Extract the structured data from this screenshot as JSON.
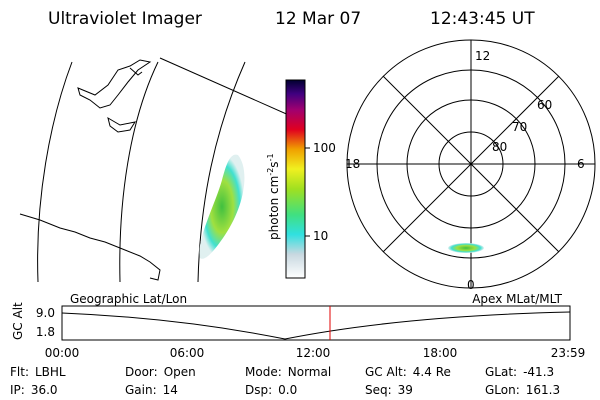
{
  "header": {
    "title": "Ultraviolet Imager",
    "date": "12 Mar 07",
    "time": "12:43:45 UT"
  },
  "colorbar": {
    "label": "photon cm",
    "exp1": "-2",
    "unit2": "s",
    "exp2": "-1",
    "ticks": [
      "100",
      "10"
    ]
  },
  "polar": {
    "mlt_labels": [
      "12",
      "18",
      "6",
      "0"
    ],
    "lat_labels": [
      "60",
      "70",
      "80"
    ]
  },
  "timeline": {
    "left_label": "Geographic Lat/Lon",
    "right_label": "Apex MLat/MLT",
    "y_label": "GC Alt",
    "yticks": [
      "9.0",
      "1.8"
    ],
    "xticks": [
      "00:00",
      "06:00",
      "12:00",
      "18:00",
      "23:59"
    ]
  },
  "info": [
    [
      {
        "label": "Flt:",
        "value": "LBHL"
      },
      {
        "label": "Door:",
        "value": "Open"
      },
      {
        "label": "Mode:",
        "value": "Normal"
      },
      {
        "label": "GC Alt:",
        "value": "4.4 Re"
      },
      {
        "label": "GLat:",
        "value": "-41.3"
      }
    ],
    [
      {
        "label": "IP:",
        "value": "36.0"
      },
      {
        "label": "Gain:",
        "value": "14"
      },
      {
        "label": "Dsp:",
        "value": "0.0"
      },
      {
        "label": "Seq:",
        "value": "39"
      },
      {
        "label": "GLon:",
        "value": "161.3"
      }
    ]
  ]
}
